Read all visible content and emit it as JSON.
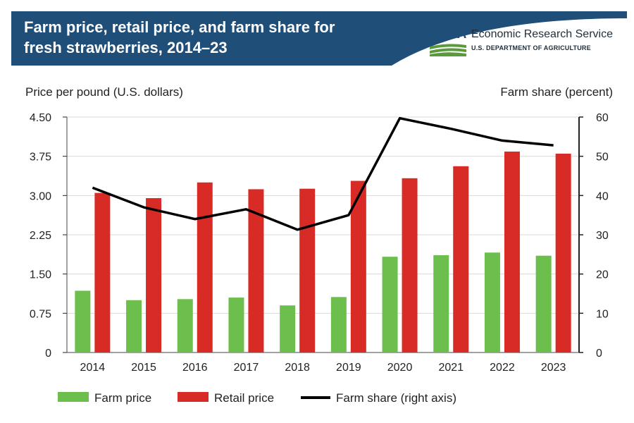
{
  "header": {
    "title_line1": "Farm price, retail price, and farm share for",
    "title_line2": "fresh strawberries, 2014–23",
    "logo_text": "USDA",
    "agency": "Economic Research Service",
    "department": "U.S. DEPARTMENT OF AGRICULTURE",
    "banner_color": "#1f4e79",
    "logo_color": "#1f4e79",
    "logo_green": "#5a9a3c"
  },
  "chart_data": {
    "type": "bar",
    "categories": [
      "2014",
      "2015",
      "2016",
      "2017",
      "2018",
      "2019",
      "2020",
      "2021",
      "2022",
      "2023"
    ],
    "series": [
      {
        "name": "Farm price",
        "kind": "bar",
        "axis": "left",
        "color": "#6cbf4c",
        "values": [
          1.18,
          1.0,
          1.02,
          1.05,
          0.9,
          1.06,
          1.83,
          1.86,
          1.91,
          1.85
        ]
      },
      {
        "name": "Retail price",
        "kind": "bar",
        "axis": "left",
        "color": "#d92b25",
        "values": [
          3.05,
          2.95,
          3.25,
          3.12,
          3.13,
          3.28,
          3.33,
          3.56,
          3.84,
          3.8
        ]
      },
      {
        "name": "Farm share (right axis)",
        "kind": "line",
        "axis": "right",
        "color": "#000000",
        "values": [
          42,
          37,
          34,
          36.5,
          31.3,
          35,
          59.7,
          57,
          54,
          52.8
        ]
      }
    ],
    "ylabel": "Price per pound (U.S. dollars)",
    "ylabel_right": "Farm share (percent)",
    "ylim": [
      0,
      4.5
    ],
    "ylim_right": [
      0,
      60
    ],
    "yticks": [
      "4.50",
      "3.75",
      "3.00",
      "2.25",
      "1.50",
      "0.75",
      "0"
    ],
    "yticks_right": [
      "60",
      "50",
      "40",
      "30",
      "20",
      "10",
      "0"
    ],
    "grid": true,
    "legend_position": "bottom"
  }
}
